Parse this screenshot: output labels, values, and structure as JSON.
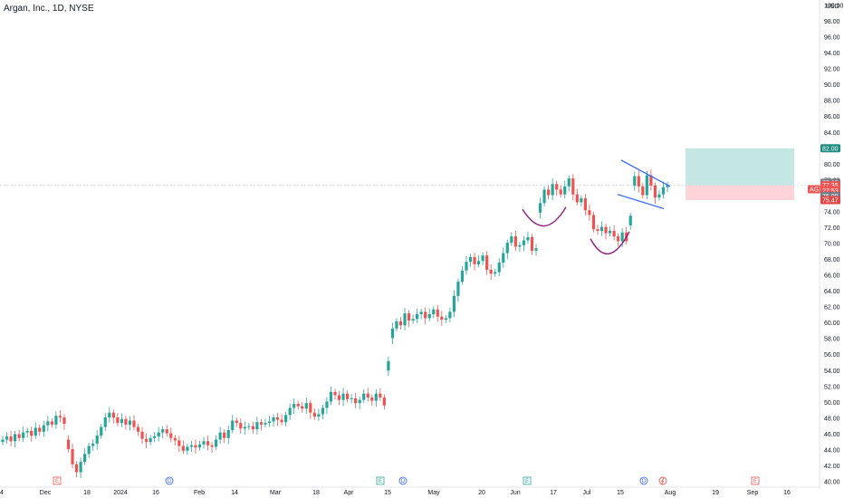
{
  "header": {
    "title": "Argan, Inc., 1D, NYSE",
    "currency": "USD"
  },
  "colors": {
    "up": "#26a69a",
    "down": "#ef5350",
    "pattern": "#8e1b7e",
    "channel": "#2962ff",
    "target_zone": "#b2dfdb",
    "stop_zone": "#ffcdd2"
  },
  "chart_data": {
    "type": "candlestick",
    "symbol": "AGX",
    "ylim": [
      40.0,
      100.0
    ],
    "y_ticks": [
      "40.00",
      "42.00",
      "44.00",
      "46.00",
      "48.00",
      "50.00",
      "52.00",
      "54.00",
      "56.00",
      "58.00",
      "60.00",
      "62.00",
      "64.00",
      "66.00",
      "68.00",
      "70.00",
      "72.00",
      "74.00",
      "76.00",
      "78.00",
      "80.00",
      "82.00",
      "84.00",
      "86.00",
      "88.00",
      "90.00",
      "92.00",
      "94.00",
      "96.00",
      "98.00",
      "100.00"
    ],
    "x_ticks": [
      "4",
      "Dec",
      "18",
      "2024",
      "16",
      "Feb",
      "14",
      "Mar",
      "18",
      "Apr",
      "15",
      "May",
      "20",
      "Jun",
      "17",
      "Jul",
      "15",
      "Aug",
      "19",
      "Sep",
      "16"
    ],
    "price_tags": [
      {
        "label": "82.00",
        "value": 82.0,
        "kind": "target"
      },
      {
        "label": "77.65",
        "value": 77.65,
        "kind": "plain"
      },
      {
        "label": "AGX",
        "value": 76.85,
        "kind": "symbol"
      },
      {
        "label": "77.35",
        "value": 77.35,
        "kind": "last"
      },
      {
        "label": "27:53",
        "value": 76.7,
        "kind": "timer"
      },
      {
        "label": "76.00",
        "value": 76.0,
        "kind": "plain"
      },
      {
        "label": "75.47",
        "value": 75.47,
        "kind": "stop"
      }
    ],
    "last_price": 77.35,
    "position": {
      "entry": 77.35,
      "target": 82.0,
      "stop": 75.47
    },
    "events": [
      "E",
      "D",
      "E",
      "D",
      "E",
      "D",
      "E"
    ],
    "closes": [
      45.3,
      45.7,
      45.1,
      46.0,
      45.5,
      46.2,
      46.4,
      45.8,
      46.8,
      46.3,
      47.1,
      47.6,
      47.2,
      48.3,
      48.1,
      47.3,
      44.1,
      42.2,
      41.2,
      42.5,
      43.5,
      44.5,
      44.8,
      45.8,
      46.9,
      48.1,
      48.7,
      48.1,
      47.4,
      47.9,
      47.2,
      47.7,
      46.9,
      46.3,
      45.4,
      45.0,
      45.5,
      45.7,
      46.2,
      46.6,
      46.1,
      45.5,
      45.2,
      44.5,
      43.9,
      44.4,
      44.6,
      44.3,
      44.7,
      45.1,
      44.6,
      44.4,
      45.3,
      46.2,
      45.5,
      46.5,
      47.7,
      47.4,
      46.7,
      46.9,
      47.0,
      46.6,
      47.5,
      47.2,
      47.4,
      47.6,
      48.1,
      47.8,
      47.5,
      48.4,
      49.3,
      49.8,
      49.5,
      49.2,
      49.9,
      48.7,
      48.2,
      48.5,
      49.3,
      50.1,
      51.3,
      50.9,
      50.3,
      51.1,
      50.4,
      50.5,
      49.9,
      50.3,
      51.1,
      50.6,
      50.2,
      51.1,
      50.6,
      49.6,
      55.2,
      59.3,
      60.2,
      59.7,
      61.2,
      60.3,
      60.5,
      61.1,
      61.4,
      60.6,
      61.1,
      61.7,
      60.8,
      60.4,
      60.6,
      61.4,
      63.4,
      65.2,
      66.6,
      67.7,
      68.3,
      67.4,
      67.8,
      68.5,
      66.7,
      66.2,
      66.4,
      67.6,
      68.8,
      70.1,
      70.9,
      69.6,
      69.8,
      70.4,
      70.8,
      69.1,
      69.4,
      75.1,
      76.8,
      76.1,
      77.5,
      76.8,
      76.2,
      77.2,
      78.2,
      76.2,
      75.2,
      75.7,
      74.2,
      73.6,
      71.8,
      71.6,
      72.1,
      71.3,
      71.6,
      70.9,
      70.3,
      71.4,
      70.3,
      73.5,
      78.5,
      77.2,
      76.1,
      78.6,
      77.3,
      75.8,
      76.2,
      77.1,
      77.35
    ]
  }
}
